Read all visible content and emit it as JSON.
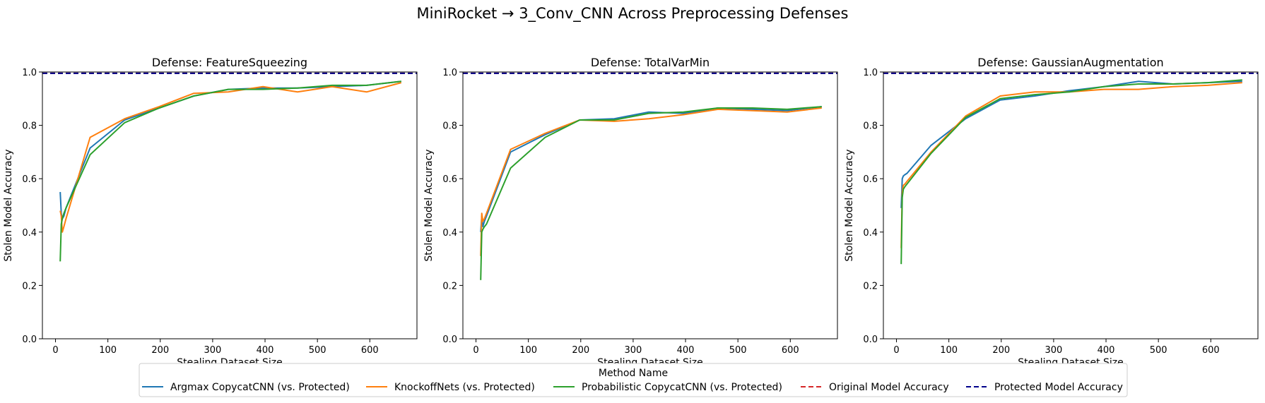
{
  "figure": {
    "title": "MiniRocket → 3_Conv_CNN Across Preprocessing Defenses"
  },
  "legend": {
    "title": "Method Name",
    "placement": "lower center",
    "entries": [
      {
        "label": "Argmax CopycatCNN (vs. Protected)",
        "color": "#1f77b4",
        "style": "solid"
      },
      {
        "label": "KnockoffNets (vs. Protected)",
        "color": "#ff7f0e",
        "style": "solid"
      },
      {
        "label": "Probabilistic CopycatCNN (vs. Protected)",
        "color": "#2ca02c",
        "style": "solid"
      },
      {
        "label": "Original Model Accuracy",
        "color": "#d62728",
        "style": "dashed"
      },
      {
        "label": "Protected Model Accuracy",
        "color": "#00008b",
        "style": "dashed"
      }
    ]
  },
  "chart_data": [
    {
      "type": "line",
      "title": "Defense: FeatureSqueezing",
      "xlabel": "Stealing Dataset Size",
      "ylabel": "Stolen Model Accuracy",
      "xlim": [
        -25,
        690
      ],
      "ylim": [
        0,
        1
      ],
      "xticks": [
        0,
        100,
        200,
        300,
        400,
        500,
        600
      ],
      "yticks": [
        0.0,
        0.2,
        0.4,
        0.6,
        0.8,
        1.0
      ],
      "grid": false,
      "hlines": [
        {
          "name": "Original Model Accuracy",
          "y": 0.995,
          "color": "#d62728"
        },
        {
          "name": "Protected Model Accuracy",
          "y": 0.995,
          "color": "#00008b"
        }
      ],
      "series": [
        {
          "name": "Argmax CopycatCNN (vs. Protected)",
          "color": "#1f77b4",
          "x": [
            9,
            11,
            13,
            16,
            20,
            66,
            132,
            198,
            264,
            330,
            396,
            462,
            528,
            594,
            660
          ],
          "y": [
            0.55,
            0.47,
            0.45,
            0.46,
            0.49,
            0.715,
            0.82,
            0.865,
            0.91,
            0.935,
            0.94,
            0.94,
            0.945,
            0.95,
            0.965
          ]
        },
        {
          "name": "KnockoffNets (vs. Protected)",
          "color": "#ff7f0e",
          "x": [
            9,
            11,
            13,
            16,
            20,
            66,
            132,
            198,
            264,
            330,
            396,
            462,
            528,
            594,
            660
          ],
          "y": [
            0.48,
            0.46,
            0.4,
            0.42,
            0.45,
            0.755,
            0.825,
            0.87,
            0.92,
            0.925,
            0.945,
            0.925,
            0.945,
            0.925,
            0.96
          ]
        },
        {
          "name": "Probabilistic CopycatCNN (vs. Protected)",
          "color": "#2ca02c",
          "x": [
            9,
            11,
            13,
            16,
            20,
            66,
            132,
            198,
            264,
            330,
            396,
            462,
            528,
            594,
            660
          ],
          "y": [
            0.29,
            0.43,
            0.45,
            0.47,
            0.49,
            0.69,
            0.81,
            0.865,
            0.91,
            0.935,
            0.935,
            0.94,
            0.95,
            0.95,
            0.965
          ]
        }
      ]
    },
    {
      "type": "line",
      "title": "Defense: TotalVarMin",
      "xlabel": "Stealing Dataset Size",
      "ylabel": "Stolen Model Accuracy",
      "xlim": [
        -25,
        690
      ],
      "ylim": [
        0,
        1
      ],
      "xticks": [
        0,
        100,
        200,
        300,
        400,
        500,
        600
      ],
      "yticks": [
        0.0,
        0.2,
        0.4,
        0.6,
        0.8,
        1.0
      ],
      "grid": false,
      "hlines": [
        {
          "name": "Original Model Accuracy",
          "y": 0.995,
          "color": "#d62728"
        },
        {
          "name": "Protected Model Accuracy",
          "y": 0.995,
          "color": "#00008b"
        }
      ],
      "series": [
        {
          "name": "Argmax CopycatCNN (vs. Protected)",
          "color": "#1f77b4",
          "x": [
            9,
            11,
            13,
            16,
            20,
            66,
            132,
            198,
            264,
            330,
            396,
            462,
            528,
            594,
            660
          ],
          "y": [
            0.4,
            0.46,
            0.42,
            0.44,
            0.46,
            0.7,
            0.765,
            0.82,
            0.825,
            0.85,
            0.845,
            0.865,
            0.86,
            0.855,
            0.87
          ]
        },
        {
          "name": "KnockoffNets (vs. Protected)",
          "color": "#ff7f0e",
          "x": [
            9,
            11,
            13,
            16,
            20,
            66,
            132,
            198,
            264,
            330,
            396,
            462,
            528,
            594,
            660
          ],
          "y": [
            0.31,
            0.47,
            0.44,
            0.45,
            0.47,
            0.71,
            0.77,
            0.82,
            0.815,
            0.825,
            0.84,
            0.86,
            0.855,
            0.85,
            0.865
          ]
        },
        {
          "name": "Probabilistic CopycatCNN (vs. Protected)",
          "color": "#2ca02c",
          "x": [
            9,
            11,
            13,
            16,
            20,
            66,
            132,
            198,
            264,
            330,
            396,
            462,
            528,
            594,
            660
          ],
          "y": [
            0.22,
            0.4,
            0.41,
            0.42,
            0.43,
            0.64,
            0.755,
            0.82,
            0.82,
            0.845,
            0.85,
            0.865,
            0.865,
            0.86,
            0.87
          ]
        }
      ]
    },
    {
      "type": "line",
      "title": "Defense: GaussianAugmentation",
      "xlabel": "Stealing Dataset Size",
      "ylabel": "Stolen Model Accuracy",
      "xlim": [
        -25,
        690
      ],
      "ylim": [
        0,
        1
      ],
      "xticks": [
        0,
        100,
        200,
        300,
        400,
        500,
        600
      ],
      "yticks": [
        0.0,
        0.2,
        0.4,
        0.6,
        0.8,
        1.0
      ],
      "grid": false,
      "hlines": [
        {
          "name": "Original Model Accuracy",
          "y": 0.995,
          "color": "#d62728"
        },
        {
          "name": "Protected Model Accuracy",
          "y": 0.995,
          "color": "#00008b"
        }
      ],
      "series": [
        {
          "name": "Argmax CopycatCNN (vs. Protected)",
          "color": "#1f77b4",
          "x": [
            9,
            11,
            13,
            16,
            20,
            66,
            132,
            198,
            264,
            330,
            396,
            462,
            528,
            594,
            660
          ],
          "y": [
            0.49,
            0.6,
            0.61,
            0.615,
            0.62,
            0.725,
            0.825,
            0.895,
            0.91,
            0.93,
            0.945,
            0.965,
            0.955,
            0.96,
            0.965
          ]
        },
        {
          "name": "KnockoffNets (vs. Protected)",
          "color": "#ff7f0e",
          "x": [
            9,
            11,
            13,
            16,
            20,
            66,
            132,
            198,
            264,
            330,
            396,
            462,
            528,
            594,
            660
          ],
          "y": [
            0.34,
            0.55,
            0.575,
            0.58,
            0.59,
            0.7,
            0.835,
            0.91,
            0.925,
            0.925,
            0.935,
            0.935,
            0.945,
            0.95,
            0.96
          ]
        },
        {
          "name": "Probabilistic CopycatCNN (vs. Protected)",
          "color": "#2ca02c",
          "x": [
            9,
            11,
            13,
            16,
            20,
            66,
            132,
            198,
            264,
            330,
            396,
            462,
            528,
            594,
            660
          ],
          "y": [
            0.28,
            0.53,
            0.56,
            0.57,
            0.58,
            0.695,
            0.83,
            0.9,
            0.915,
            0.925,
            0.945,
            0.955,
            0.955,
            0.96,
            0.97
          ]
        }
      ]
    }
  ]
}
